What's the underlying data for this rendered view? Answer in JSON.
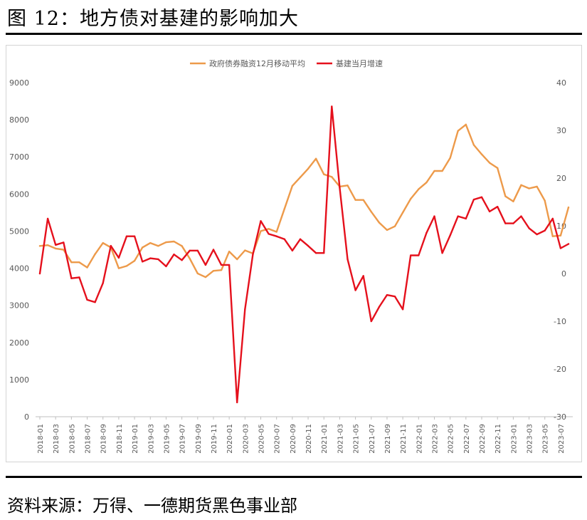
{
  "figure": {
    "title": "图 12：地方债对基建的影响加大",
    "source": "资料来源：万得、一德期货黑色事业部"
  },
  "chart_data": {
    "type": "line",
    "x": [
      "2018-01",
      "2018-02",
      "2018-03",
      "2018-04",
      "2018-05",
      "2018-06",
      "2018-07",
      "2018-08",
      "2018-09",
      "2018-10",
      "2018-11",
      "2018-12",
      "2019-01",
      "2019-02",
      "2019-03",
      "2019-04",
      "2019-05",
      "2019-06",
      "2019-07",
      "2019-08",
      "2019-09",
      "2019-10",
      "2019-11",
      "2019-12",
      "2020-01",
      "2020-02",
      "2020-03",
      "2020-04",
      "2020-05",
      "2020-06",
      "2020-07",
      "2020-08",
      "2020-09",
      "2020-10",
      "2020-11",
      "2020-12",
      "2021-01",
      "2021-02",
      "2021-03",
      "2021-04",
      "2021-05",
      "2021-06",
      "2021-07",
      "2021-08",
      "2021-09",
      "2021-10",
      "2021-11",
      "2021-12",
      "2022-01",
      "2022-02",
      "2022-03",
      "2022-04",
      "2022-05",
      "2022-06",
      "2022-07",
      "2022-08",
      "2022-09",
      "2022-10",
      "2022-11",
      "2022-12",
      "2023-01",
      "2023-02",
      "2023-03",
      "2023-04",
      "2023-05",
      "2023-06",
      "2023-07",
      "2023-08"
    ],
    "xticks": [
      "2018-01",
      "2018-03",
      "2018-05",
      "2018-07",
      "2018-09",
      "2018-11",
      "2019-01",
      "2019-03",
      "2019-05",
      "2019-07",
      "2019-09",
      "2019-11",
      "2020-01",
      "2020-03",
      "2020-05",
      "2020-07",
      "2020-09",
      "2020-11",
      "2021-01",
      "2021-03",
      "2021-05",
      "2021-07",
      "2021-09",
      "2021-11",
      "2022-01",
      "2022-03",
      "2022-05",
      "2022-07",
      "2022-09",
      "2022-11",
      "2023-01",
      "2023-03",
      "2023-05",
      "2023-07"
    ],
    "series": [
      {
        "name": "政府债券融资12月移动平均",
        "axis": "left",
        "color": "#ED9A4A",
        "values": [
          4600,
          4620,
          4530,
          4500,
          4160,
          4160,
          4020,
          4380,
          4680,
          4560,
          4000,
          4060,
          4200,
          4560,
          4680,
          4600,
          4700,
          4720,
          4600,
          4260,
          3860,
          3760,
          3930,
          3950,
          4450,
          4240,
          4480,
          4400,
          5000,
          5060,
          4980,
          5600,
          6220,
          6450,
          6680,
          6950,
          6530,
          6460,
          6200,
          6230,
          5840,
          5840,
          5520,
          5230,
          5030,
          5130,
          5500,
          5870,
          6130,
          6310,
          6620,
          6620,
          6970,
          7700,
          7870,
          7320,
          7070,
          6840,
          6700,
          5940,
          5800,
          6240,
          6150,
          6200,
          5820,
          4860,
          4880,
          5640
        ]
      },
      {
        "name": "基建当月增速",
        "axis": "right",
        "color": "#E5101C",
        "values": [
          0,
          11.5,
          6,
          6.5,
          -1,
          -0.8,
          -5.5,
          -6,
          -2,
          5.8,
          3.3,
          7.8,
          7.8,
          2.5,
          3.2,
          3,
          1.5,
          4,
          2.8,
          4.8,
          4.8,
          1.8,
          5,
          1.8,
          1.8,
          -27,
          -7.5,
          4,
          11,
          8.3,
          7.8,
          7.2,
          4.8,
          7.2,
          5.8,
          4.3,
          4.3,
          35,
          18,
          3,
          -3.5,
          -0.5,
          -10,
          -7,
          -4.5,
          -4.8,
          -7.5,
          3.8,
          3.8,
          8.5,
          12,
          4.3,
          8,
          12,
          11.5,
          15.5,
          16,
          13,
          14,
          10.5,
          10.5,
          12,
          9.5,
          8.2,
          9,
          11.5,
          5.3,
          6.2
        ]
      }
    ],
    "y_left": {
      "min": 0,
      "max": 9000,
      "ticks": [
        0,
        1000,
        2000,
        3000,
        4000,
        5000,
        6000,
        7000,
        8000,
        9000
      ]
    },
    "y_right": {
      "min": -30,
      "max": 40,
      "ticks": [
        -30,
        -20,
        -10,
        0,
        10,
        20,
        30,
        40
      ]
    },
    "grid": false,
    "legend_position": "top-center"
  }
}
